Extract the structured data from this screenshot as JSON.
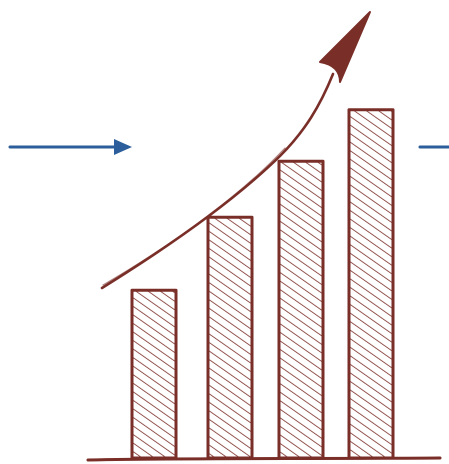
{
  "illustration": {
    "icon": "sketched-growth-bar-chart-icon",
    "ink_color": "#7a2e28",
    "accent_color": "#2b5e9a",
    "bar_levels": [
      0.39,
      0.56,
      0.69,
      0.81
    ]
  },
  "arrows": {
    "left_icon": "arrow-right-icon",
    "right_icon": "line-segment-icon",
    "trend_icon": "trend-up-arrow-icon"
  }
}
